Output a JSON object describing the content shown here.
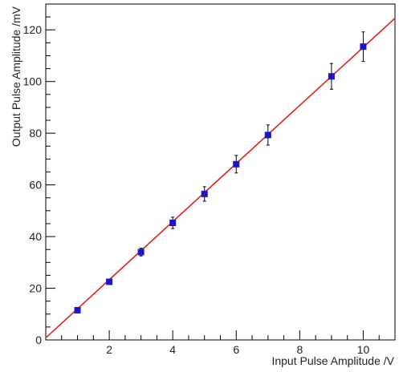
{
  "chart_data": {
    "type": "scatter",
    "title": "",
    "xlabel": "Input Pulse Amplitude /V",
    "ylabel": "Output Pulse Amplitude /mV",
    "xlim": [
      0,
      11
    ],
    "ylim": [
      0,
      130
    ],
    "x_ticks": [
      2,
      4,
      6,
      8,
      10
    ],
    "y_ticks": [
      0,
      20,
      40,
      60,
      80,
      100,
      120
    ],
    "grid": false,
    "legend": "none",
    "series": [
      {
        "x": [
          1,
          2,
          3,
          4,
          5,
          6,
          7,
          9,
          10
        ],
        "y": [
          11.5,
          22.5,
          34,
          45.3,
          56.5,
          68,
          79.3,
          102,
          113.5
        ],
        "y_err": [
          0.8,
          1.0,
          1.5,
          2.2,
          2.8,
          3.4,
          3.9,
          5.0,
          5.7
        ]
      }
    ],
    "fit_line": {
      "x": [
        0,
        11
      ],
      "y": [
        0.8,
        124.5
      ]
    },
    "colors": {
      "marker": "#1c14c8",
      "fit": "#e02020",
      "axis": "#000000",
      "errorbar": "#000000"
    }
  }
}
